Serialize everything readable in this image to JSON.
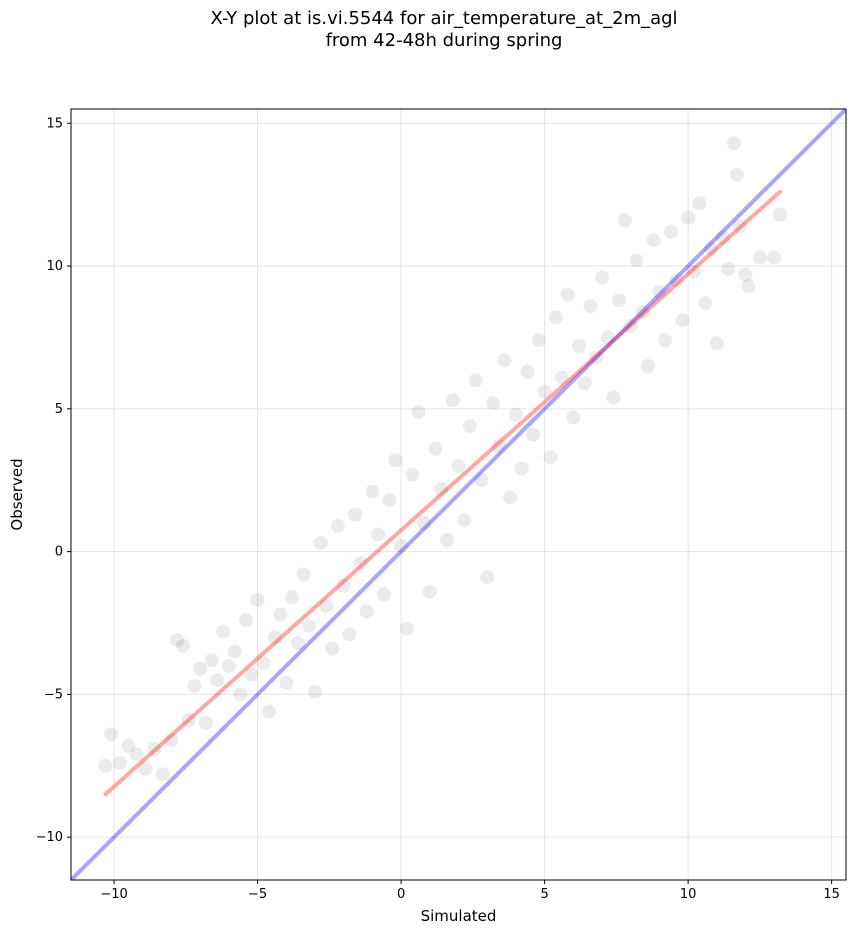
{
  "title": {
    "line1": "X-Y plot at is.vi.5544 for air_temperature_at_2m_agl",
    "line2": "from 42-48h during spring"
  },
  "chart_data": {
    "type": "scatter",
    "xlabel": "Simulated",
    "ylabel": "Observed",
    "xlim": [
      -11.5,
      15.5
    ],
    "ylim": [
      -11.5,
      15.5
    ],
    "xticks": [
      -10,
      -5,
      0,
      5,
      10,
      15
    ],
    "yticks": [
      -10,
      -5,
      0,
      5,
      10,
      15
    ],
    "xtick_labels": [
      "−10",
      "−5",
      "0",
      "5",
      "10",
      "15"
    ],
    "ytick_labels": [
      "−10",
      "−5",
      "0",
      "5",
      "10",
      "15"
    ],
    "grid": true,
    "point_color": "#000000",
    "point_alpha": 0.08,
    "points": [
      [
        -10.3,
        -7.5
      ],
      [
        -10.1,
        -6.4
      ],
      [
        -9.8,
        -7.4
      ],
      [
        -9.5,
        -6.8
      ],
      [
        -9.2,
        -7.1
      ],
      [
        -8.9,
        -7.6
      ],
      [
        -8.6,
        -6.9
      ],
      [
        -8.3,
        -7.8
      ],
      [
        -8.0,
        -6.6
      ],
      [
        -7.8,
        -3.1
      ],
      [
        -7.6,
        -3.3
      ],
      [
        -7.4,
        -5.9
      ],
      [
        -7.2,
        -4.7
      ],
      [
        -7.0,
        -4.1
      ],
      [
        -6.8,
        -6.0
      ],
      [
        -6.6,
        -3.8
      ],
      [
        -6.4,
        -4.5
      ],
      [
        -6.2,
        -2.8
      ],
      [
        -6.0,
        -4.0
      ],
      [
        -5.8,
        -3.5
      ],
      [
        -5.6,
        -5.0
      ],
      [
        -5.4,
        -2.4
      ],
      [
        -5.2,
        -4.3
      ],
      [
        -5.0,
        -1.7
      ],
      [
        -4.8,
        -3.9
      ],
      [
        -4.6,
        -5.6
      ],
      [
        -4.4,
        -3.0
      ],
      [
        -4.2,
        -2.2
      ],
      [
        -4.0,
        -4.6
      ],
      [
        -3.8,
        -1.6
      ],
      [
        -3.6,
        -3.2
      ],
      [
        -3.4,
        -0.8
      ],
      [
        -3.2,
        -2.6
      ],
      [
        -3.0,
        -4.9
      ],
      [
        -2.8,
        0.3
      ],
      [
        -2.6,
        -1.9
      ],
      [
        -2.4,
        -3.4
      ],
      [
        -2.2,
        0.9
      ],
      [
        -2.0,
        -1.2
      ],
      [
        -1.8,
        -2.9
      ],
      [
        -1.6,
        1.3
      ],
      [
        -1.4,
        -0.4
      ],
      [
        -1.2,
        -2.1
      ],
      [
        -1.0,
        2.1
      ],
      [
        -0.8,
        0.6
      ],
      [
        -0.6,
        -1.5
      ],
      [
        -0.4,
        1.8
      ],
      [
        -0.2,
        3.2
      ],
      [
        0.0,
        0.2
      ],
      [
        0.2,
        -2.7
      ],
      [
        0.4,
        2.7
      ],
      [
        0.6,
        4.9
      ],
      [
        0.8,
        1.0
      ],
      [
        1.0,
        -1.4
      ],
      [
        1.2,
        3.6
      ],
      [
        1.4,
        2.2
      ],
      [
        1.6,
        0.4
      ],
      [
        1.8,
        5.3
      ],
      [
        2.0,
        3.0
      ],
      [
        2.2,
        1.1
      ],
      [
        2.4,
        4.4
      ],
      [
        2.6,
        6.0
      ],
      [
        2.8,
        2.5
      ],
      [
        3.0,
        -0.9
      ],
      [
        3.2,
        5.2
      ],
      [
        3.4,
        3.7
      ],
      [
        3.6,
        6.7
      ],
      [
        3.8,
        1.9
      ],
      [
        4.0,
        4.8
      ],
      [
        4.2,
        2.9
      ],
      [
        4.4,
        6.3
      ],
      [
        4.6,
        4.1
      ],
      [
        4.8,
        7.4
      ],
      [
        5.0,
        5.6
      ],
      [
        5.2,
        3.3
      ],
      [
        5.4,
        8.2
      ],
      [
        5.6,
        6.1
      ],
      [
        5.8,
        9.0
      ],
      [
        6.0,
        4.7
      ],
      [
        6.2,
        7.2
      ],
      [
        6.4,
        5.9
      ],
      [
        6.6,
        8.6
      ],
      [
        6.8,
        6.8
      ],
      [
        7.0,
        9.6
      ],
      [
        7.2,
        7.5
      ],
      [
        7.4,
        5.4
      ],
      [
        7.6,
        8.8
      ],
      [
        7.8,
        11.6
      ],
      [
        8.0,
        7.9
      ],
      [
        8.2,
        10.2
      ],
      [
        8.4,
        8.4
      ],
      [
        8.6,
        6.5
      ],
      [
        8.8,
        10.9
      ],
      [
        9.0,
        9.1
      ],
      [
        9.2,
        7.4
      ],
      [
        9.4,
        11.2
      ],
      [
        9.6,
        9.5
      ],
      [
        9.8,
        8.1
      ],
      [
        10.0,
        11.7
      ],
      [
        10.2,
        9.8
      ],
      [
        10.4,
        12.2
      ],
      [
        10.6,
        8.7
      ],
      [
        10.8,
        10.6
      ],
      [
        11.0,
        7.3
      ],
      [
        11.2,
        11.0
      ],
      [
        11.4,
        9.9
      ],
      [
        11.6,
        14.3
      ],
      [
        11.8,
        11.4
      ],
      [
        12.0,
        9.7
      ],
      [
        12.5,
        10.3
      ],
      [
        13.0,
        10.3
      ],
      [
        13.2,
        11.8
      ],
      [
        11.7,
        13.2
      ],
      [
        12.1,
        9.3
      ]
    ],
    "lines": [
      {
        "color": "#0000ff",
        "alpha": 0.35,
        "x": [
          -11.5,
          15.5
        ],
        "y": [
          -11.5,
          15.5
        ]
      },
      {
        "color": "#ff0000",
        "alpha": 0.35,
        "x": [
          -10.3,
          13.2
        ],
        "y": [
          -8.5,
          12.6
        ]
      }
    ]
  }
}
